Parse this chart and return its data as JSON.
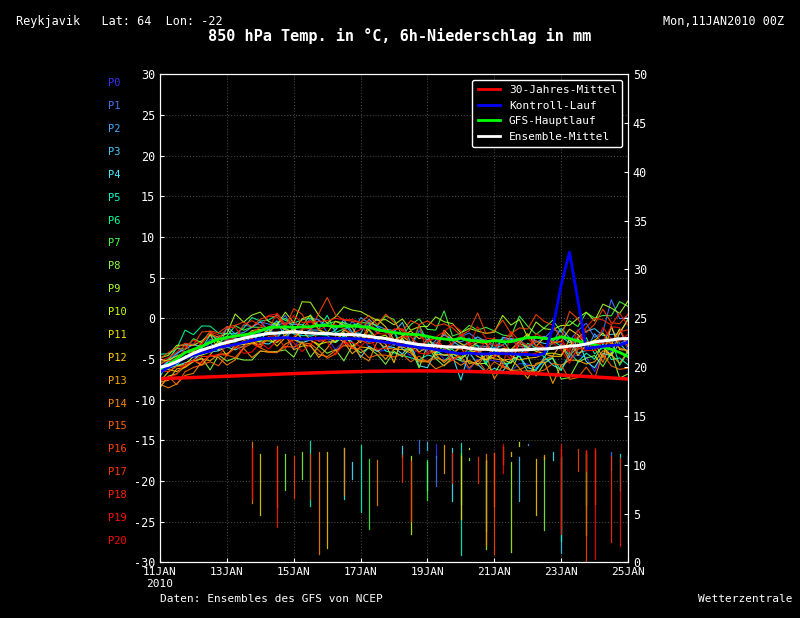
{
  "title_line1_left": "Reykjavik   Lat: 64  Lon: -22",
  "title_line1_right": "Mon,11JAN2010 00Z",
  "title_line2": "850 hPa Temp. in °C, 6h-Niederschlag in mm",
  "background_color": "#000000",
  "plot_bg_color": "#000000",
  "left_labels": [
    "P0",
    "P1",
    "P2",
    "P3",
    "P4",
    "P5",
    "P6",
    "P7",
    "P8",
    "P9",
    "P10",
    "P11",
    "P12",
    "P13",
    "P14",
    "P15",
    "P16",
    "P17",
    "P18",
    "P19",
    "P20"
  ],
  "left_label_colors": [
    "#3333ff",
    "#4477ff",
    "#44aaff",
    "#44ccff",
    "#44eeff",
    "#00ffcc",
    "#00ff99",
    "#44ff44",
    "#88ff44",
    "#aaff22",
    "#ccff00",
    "#eedd00",
    "#ffcc00",
    "#ffaa00",
    "#ff8800",
    "#ff6600",
    "#ff4400",
    "#ff3300",
    "#ff2200",
    "#ff1100",
    "#ff0000"
  ],
  "ylim_left": [
    -30,
    30
  ],
  "ylim_right": [
    0,
    50
  ],
  "yticks_left": [
    -30,
    -25,
    -20,
    -15,
    -10,
    -5,
    0,
    5,
    10,
    15,
    20,
    25,
    30
  ],
  "yticks_right": [
    0,
    5,
    10,
    15,
    20,
    25,
    30,
    35,
    40,
    45,
    50
  ],
  "xtick_labels": [
    "11JAN\n2010",
    "13JAN",
    "15JAN",
    "17JAN",
    "19JAN",
    "21JAN",
    "23JAN",
    "25JAN"
  ],
  "legend_items": [
    {
      "label": "30-Jahres-Mittel",
      "color": "#ff0000"
    },
    {
      "label": "Kontroll-Lauf",
      "color": "#0000ff"
    },
    {
      "label": "GFS-Hauptlauf",
      "color": "#00ff00"
    },
    {
      "label": "Ensemble-Mittel",
      "color": "#ffffff"
    }
  ],
  "footer_left": "Daten: Ensembles des GFS von NCEP",
  "footer_right": "Wetterzentrale",
  "num_steps": 57,
  "num_ensemble": 21,
  "seed": 42
}
